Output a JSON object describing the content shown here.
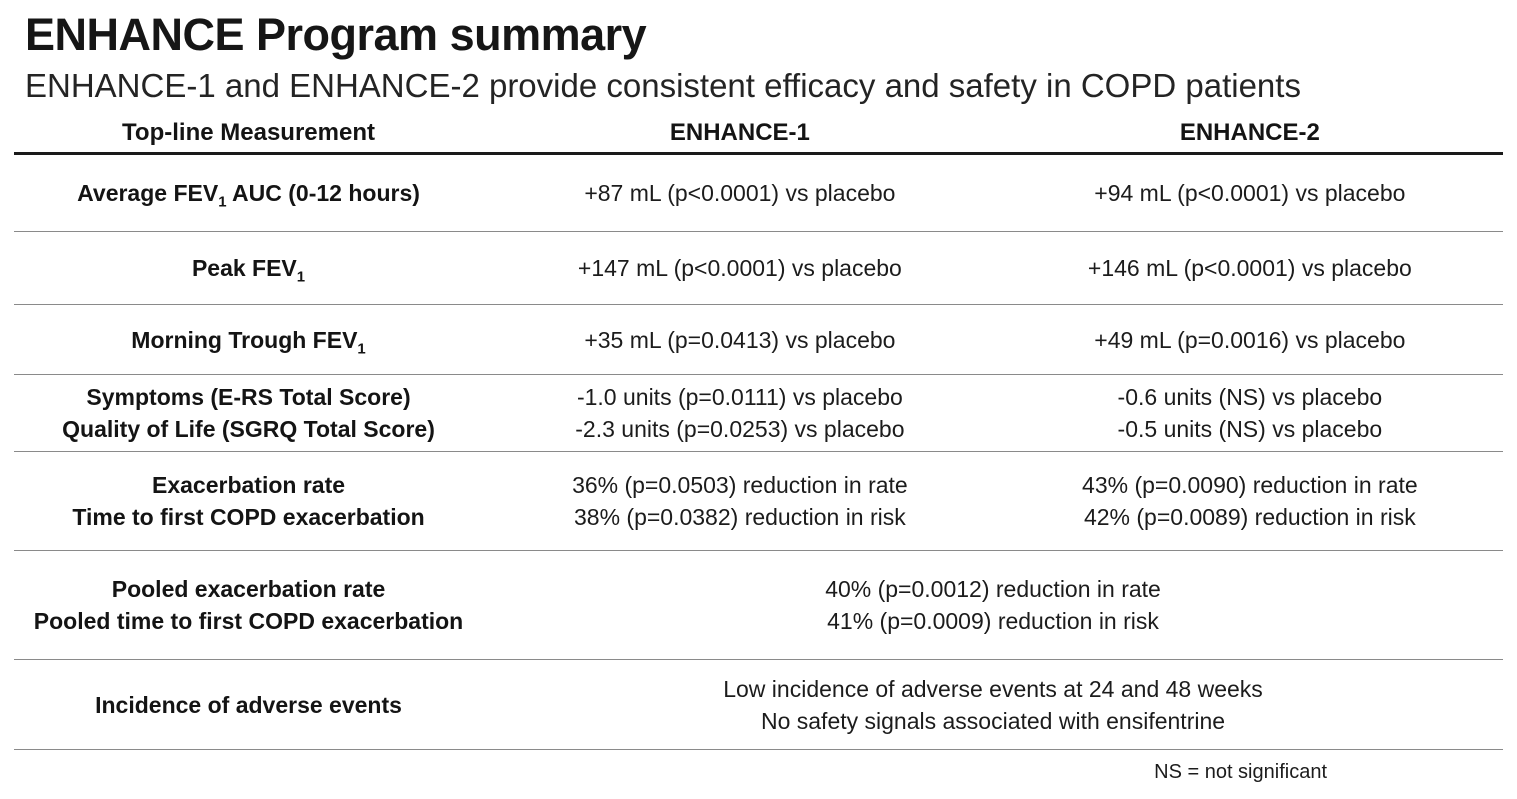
{
  "slide": {
    "title": "ENHANCE Program summary",
    "subtitle": "ENHANCE-1 and ENHANCE-2 provide consistent efficacy and safety in COPD patients",
    "footnote": "NS = not significant"
  },
  "table": {
    "headers": [
      "Top-line Measurement",
      "ENHANCE-1",
      "ENHANCE-2"
    ],
    "rows": [
      {
        "label": [
          {
            "pre": "Average FEV",
            "sub": "1",
            "post": " AUC (0-12 hours)"
          }
        ],
        "enhance1": [
          "+87 mL (p<0.0001) vs placebo"
        ],
        "enhance2": [
          "+94 mL (p<0.0001) vs placebo"
        ]
      },
      {
        "label": [
          {
            "pre": "Peak FEV",
            "sub": "1"
          }
        ],
        "enhance1": [
          "+147 mL (p<0.0001) vs placebo"
        ],
        "enhance2": [
          "+146 mL (p<0.0001) vs placebo"
        ]
      },
      {
        "label": [
          {
            "pre": "Morning Trough FEV",
            "sub": "1"
          }
        ],
        "enhance1": [
          "+35 mL (p=0.0413) vs placebo"
        ],
        "enhance2": [
          "+49 mL (p=0.0016) vs placebo"
        ]
      },
      {
        "label": [
          {
            "pre": "Symptoms (E-RS Total Score)"
          },
          {
            "pre": "Quality of Life (SGRQ Total Score)"
          }
        ],
        "enhance1": [
          "-1.0 units (p=0.0111) vs placebo",
          "-2.3 units (p=0.0253) vs placebo"
        ],
        "enhance2": [
          "-0.6 units (NS) vs placebo",
          "-0.5 units (NS) vs placebo"
        ]
      },
      {
        "label": [
          {
            "pre": "Exacerbation rate"
          },
          {
            "pre": "Time to first COPD exacerbation"
          }
        ],
        "enhance1": [
          "36% (p=0.0503) reduction in rate",
          "38% (p=0.0382) reduction in risk"
        ],
        "enhance2": [
          "43% (p=0.0090) reduction in rate",
          "42% (p=0.0089) reduction in risk"
        ]
      },
      {
        "label": [
          {
            "pre": "Pooled exacerbation rate"
          },
          {
            "pre": "Pooled time to first COPD exacerbation"
          }
        ],
        "merged": [
          "40% (p=0.0012) reduction in rate",
          "41% (p=0.0009) reduction in risk"
        ]
      },
      {
        "label": [
          {
            "pre": "Incidence of adverse events"
          }
        ],
        "merged": [
          "Low incidence of adverse events at 24 and 48 weeks",
          "No safety signals associated with ensifentrine"
        ]
      }
    ]
  }
}
